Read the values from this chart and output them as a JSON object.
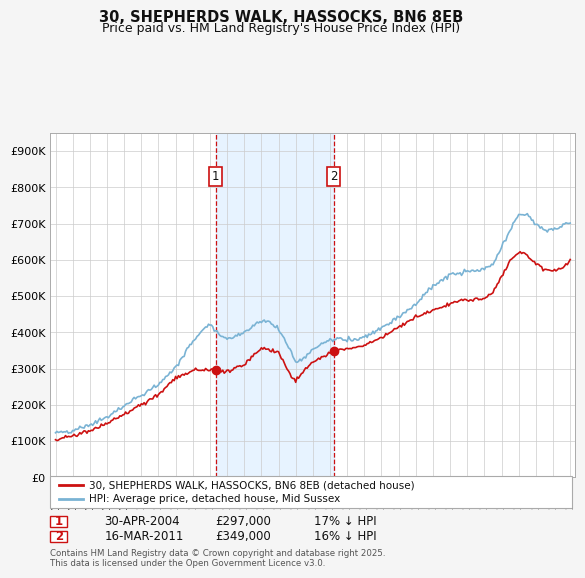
{
  "title_line1": "30, SHEPHERDS WALK, HASSOCKS, BN6 8EB",
  "title_line2": "Price paid vs. HM Land Registry's House Price Index (HPI)",
  "background_color": "#f5f5f5",
  "plot_bg_color": "#ffffff",
  "grid_color": "#cccccc",
  "hpi_line_color": "#7ab3d4",
  "price_line_color": "#cc1111",
  "vline_color": "#cc1111",
  "shade_color": "#ddeeff",
  "ylim": [
    0,
    950000
  ],
  "yticks": [
    0,
    100000,
    200000,
    300000,
    400000,
    500000,
    600000,
    700000,
    800000,
    900000
  ],
  "ytick_labels": [
    "£0",
    "£100K",
    "£200K",
    "£300K",
    "£400K",
    "£500K",
    "£600K",
    "£700K",
    "£800K",
    "£900K"
  ],
  "year_start": 1995,
  "year_end": 2025,
  "sale1_year": 2004.33,
  "sale1_price": 297000,
  "sale2_year": 2011.21,
  "sale2_price": 349000,
  "sale1_date": "30-APR-2004",
  "sale1_hpi_diff": "17% ↓ HPI",
  "sale2_date": "16-MAR-2011",
  "sale2_hpi_diff": "16% ↓ HPI",
  "legend_entry1": "30, SHEPHERDS WALK, HASSOCKS, BN6 8EB (detached house)",
  "legend_entry2": "HPI: Average price, detached house, Mid Sussex",
  "footnote": "Contains HM Land Registry data © Crown copyright and database right 2025.\nThis data is licensed under the Open Government Licence v3.0."
}
